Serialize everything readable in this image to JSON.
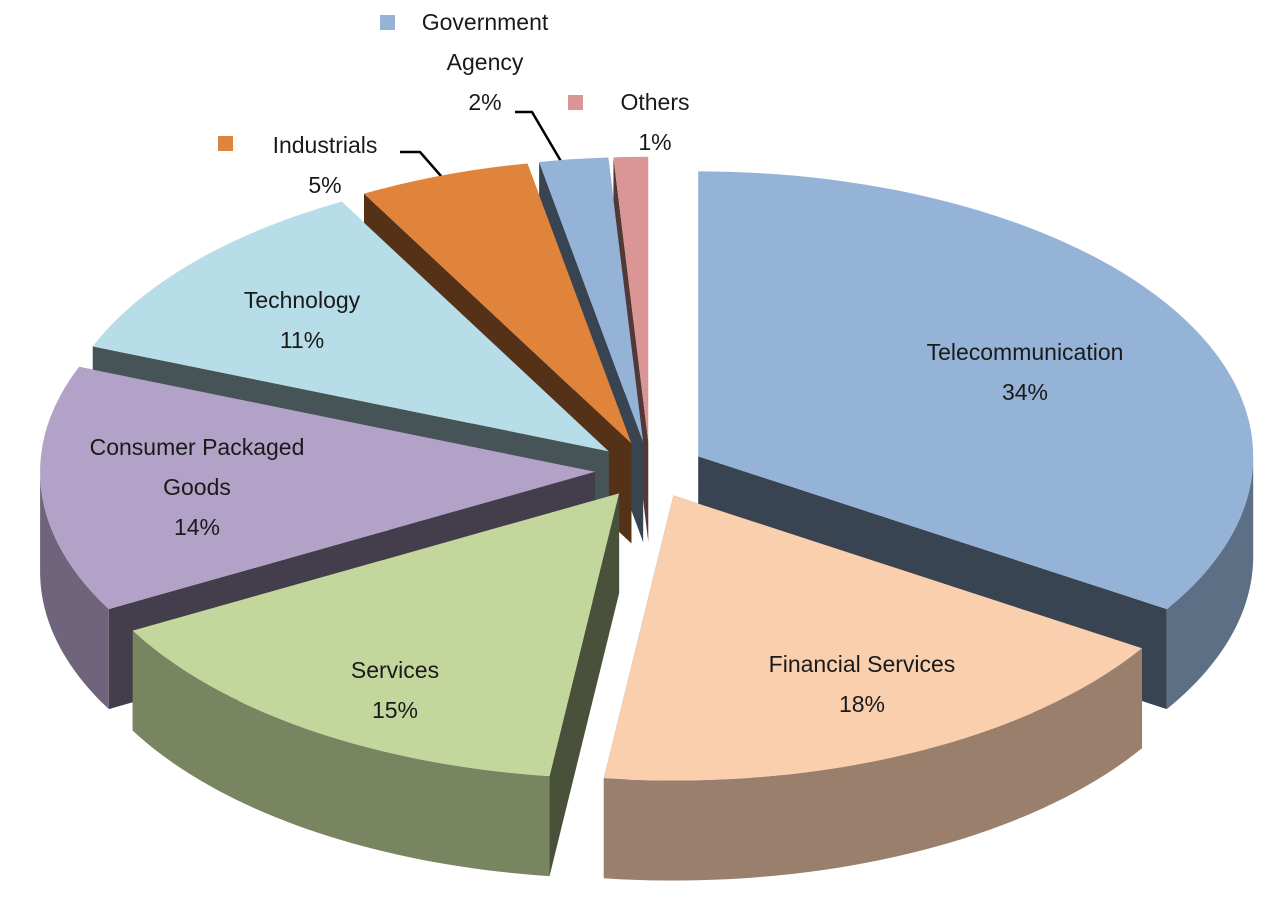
{
  "chart_data": {
    "type": "pie",
    "categories": [
      "Telecommunication",
      "Financial Services",
      "Services",
      "Consumer Packaged Goods",
      "Technology",
      "Industrials",
      "Government Agency",
      "Others"
    ],
    "values": [
      34,
      18,
      15,
      14,
      11,
      5,
      2,
      1
    ],
    "value_labels": [
      "34%",
      "18%",
      "15%",
      "14%",
      "11%",
      "5%",
      "2%",
      "1%"
    ],
    "colors": [
      "#95b3d7",
      "#f9cfae",
      "#c3d69b",
      "#b3a2c7",
      "#b7dde8",
      "#e0843c",
      "#95b3d7",
      "#d99694"
    ]
  }
}
